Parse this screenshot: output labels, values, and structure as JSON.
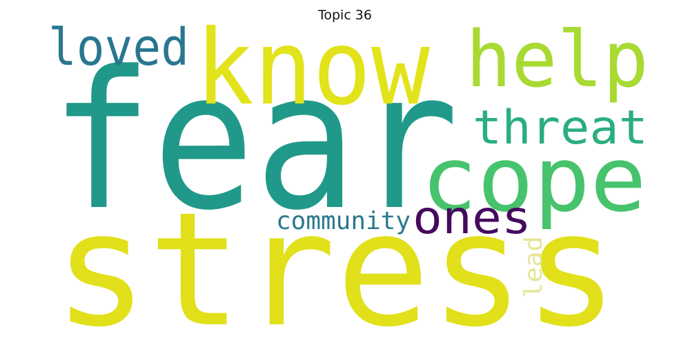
{
  "title": "Topic 36",
  "words": [
    {
      "text": "fear",
      "color": "#21998a"
    },
    {
      "text": "stress",
      "color": "#e1e01a"
    },
    {
      "text": "know",
      "color": "#e2e31a"
    },
    {
      "text": "help",
      "color": "#a8da32"
    },
    {
      "text": "cope",
      "color": "#46c36c"
    },
    {
      "text": "threat",
      "color": "#2aae7d"
    },
    {
      "text": "loved",
      "color": "#2a7690"
    },
    {
      "text": "ones",
      "color": "#450a5e"
    },
    {
      "text": "community",
      "color": "#2a788e"
    },
    {
      "text": "lead",
      "color": "#e5e598"
    }
  ]
}
